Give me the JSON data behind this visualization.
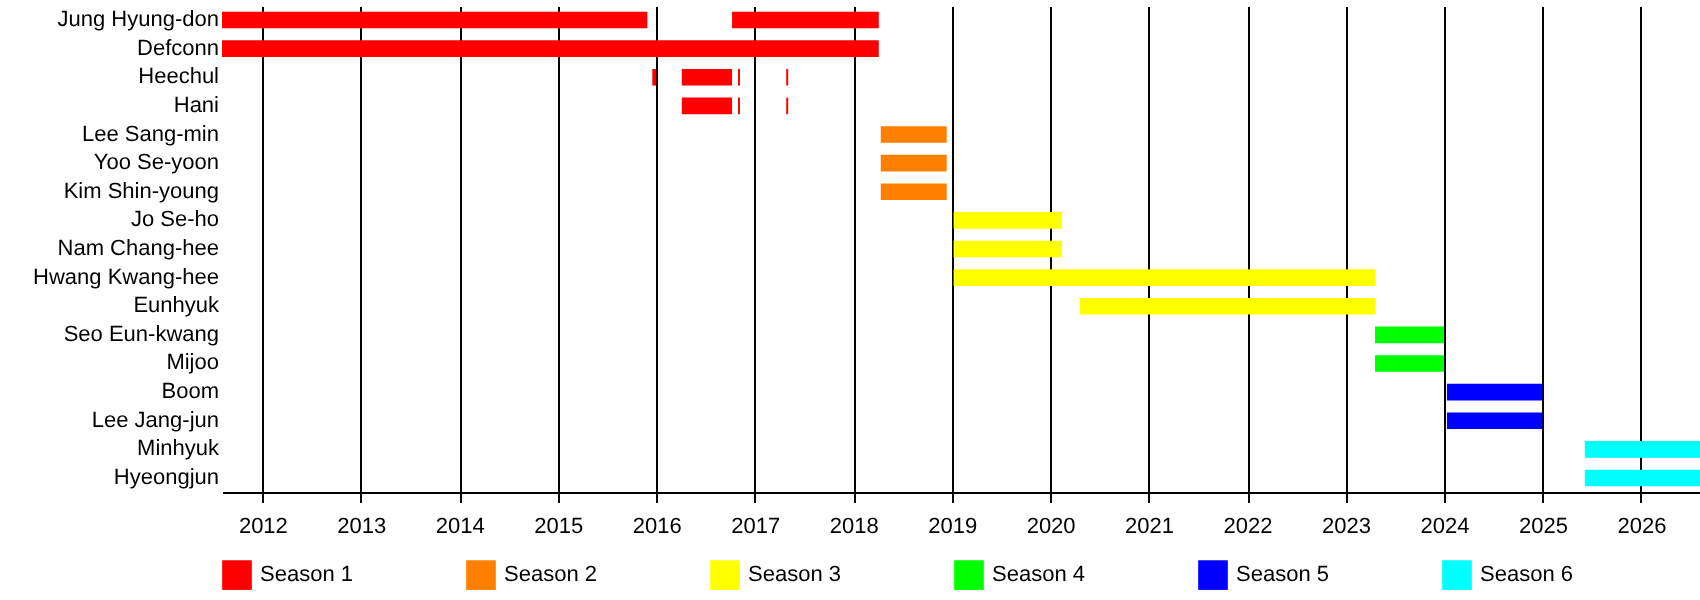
{
  "chart_data": {
    "type": "bar",
    "orientation": "horizontal",
    "categories": [
      "Jung Hyung-don",
      "Defconn",
      "Heechul",
      "Hani",
      "Lee Sang-min",
      "Yoo Se-yoon",
      "Kim Shin-young",
      "Jo Se-ho",
      "Nam Chang-hee",
      "Hwang Kwang-hee",
      "Eunhyuk",
      "Seo Eun-kwang",
      "Mijoo",
      "Boom",
      "Lee Jang-jun",
      "Minhyuk",
      "Hyeongjun"
    ],
    "series": [
      {
        "name": "Season 1",
        "color": "#ff0000",
        "base": [
          2011.59,
          2011.59,
          2016.26,
          2016.26,
          null,
          null,
          null,
          null,
          null,
          null,
          null,
          null,
          null,
          null,
          null,
          null,
          null
        ],
        "values": [
          4.32,
          6.67,
          0.51,
          0.51,
          null,
          null,
          null,
          null,
          null,
          null,
          null,
          null,
          null,
          null,
          null,
          null,
          null
        ]
      },
      {
        "color": "#ff0000",
        "base": [
          2016.77,
          null,
          2016.83,
          2016.83,
          null,
          null,
          null,
          null,
          null,
          null,
          null,
          null,
          null,
          null,
          null,
          null,
          null
        ],
        "values": [
          1.49,
          null,
          0.02,
          0.02,
          null,
          null,
          null,
          null,
          null,
          null,
          null,
          null,
          null,
          null,
          null,
          null,
          null
        ]
      },
      {
        "color": "#ff0000",
        "base": [
          null,
          null,
          2017.32,
          2017.32,
          null,
          null,
          null,
          null,
          null,
          null,
          null,
          null,
          null,
          null,
          null,
          null,
          null
        ],
        "values": [
          null,
          null,
          0.02,
          0.02,
          null,
          null,
          null,
          null,
          null,
          null,
          null,
          null,
          null,
          null,
          null,
          null,
          null
        ]
      },
      {
        "color": "#ff0000",
        "base": [
          null,
          null,
          2015.96,
          null,
          null,
          null,
          null,
          null,
          null,
          null,
          null,
          null,
          null,
          null,
          null,
          null,
          null
        ],
        "values": [
          null,
          null,
          0.04,
          null,
          null,
          null,
          null,
          null,
          null,
          null,
          null,
          null,
          null,
          null,
          null,
          null,
          null
        ]
      },
      {
        "name": "Season 2",
        "color": "#ff8000",
        "base": [
          null,
          null,
          null,
          null,
          2018.28,
          2018.28,
          2018.28,
          null,
          null,
          null,
          null,
          null,
          null,
          null,
          null,
          null,
          null
        ],
        "values": [
          null,
          null,
          null,
          null,
          0.67,
          0.67,
          0.67,
          null,
          null,
          null,
          null,
          null,
          null,
          null,
          null,
          null,
          null
        ]
      },
      {
        "name": "Season 3",
        "color": "#ffff00",
        "base": [
          null,
          null,
          null,
          null,
          null,
          null,
          null,
          2019.02,
          2019.02,
          2019.02,
          2020.3,
          null,
          null,
          null,
          null,
          null,
          null
        ],
        "values": [
          null,
          null,
          null,
          null,
          null,
          null,
          null,
          1.1,
          1.1,
          4.28,
          3.0,
          null,
          null,
          null,
          null,
          null,
          null
        ]
      },
      {
        "name": "Season 4",
        "color": "#00ff00",
        "base": [
          null,
          null,
          null,
          null,
          null,
          null,
          null,
          null,
          null,
          null,
          null,
          2023.3,
          2023.3,
          null,
          null,
          null,
          null
        ],
        "values": [
          null,
          null,
          null,
          null,
          null,
          null,
          null,
          null,
          null,
          null,
          null,
          0.7,
          0.7,
          null,
          null,
          null,
          null
        ]
      },
      {
        "name": "Season 5",
        "color": "#0000ff",
        "base": [
          null,
          null,
          null,
          null,
          null,
          null,
          null,
          null,
          null,
          null,
          null,
          null,
          null,
          2024.03,
          2024.03,
          null,
          null
        ],
        "values": [
          null,
          null,
          null,
          null,
          null,
          null,
          null,
          null,
          null,
          null,
          null,
          null,
          null,
          0.97,
          0.97,
          null,
          null
        ]
      },
      {
        "name": "Season 6",
        "color": "#00ffff",
        "base": [
          null,
          null,
          null,
          null,
          null,
          null,
          null,
          null,
          null,
          null,
          null,
          null,
          null,
          null,
          null,
          2025.43,
          2025.43
        ],
        "values": [
          null,
          null,
          null,
          null,
          null,
          null,
          null,
          null,
          null,
          null,
          null,
          null,
          null,
          null,
          null,
          1.17,
          1.17
        ]
      }
    ],
    "xlim": [
      2011.59,
      2026.6
    ],
    "xticks": [
      2012,
      2013,
      2014,
      2015,
      2016,
      2017,
      2018,
      2019,
      2020,
      2021,
      2022,
      2023,
      2024,
      2025,
      2026
    ],
    "grid": "x",
    "legend": "bottom"
  }
}
